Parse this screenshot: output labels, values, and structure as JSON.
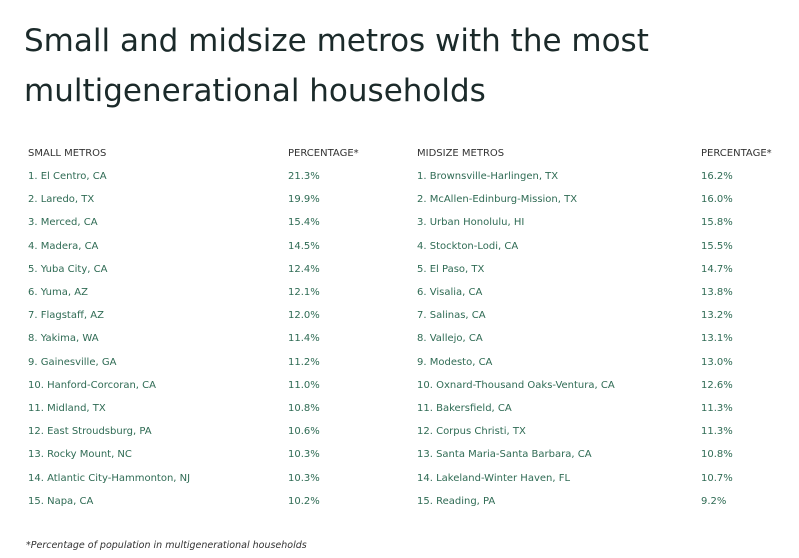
{
  "header": {
    "title": "Small and midsize metros with the most multigenerational households"
  },
  "tables": [
    {
      "columns": [
        "SMALL METROS",
        "PERCENTAGE*"
      ],
      "rows": [
        [
          "1. El Centro, CA",
          "21.3%"
        ],
        [
          "2. Laredo, TX",
          "19.9%"
        ],
        [
          "3. Merced, CA",
          "15.4%"
        ],
        [
          "4. Madera, CA",
          "14.5%"
        ],
        [
          "5. Yuba City, CA",
          "12.4%"
        ],
        [
          "6. Yuma, AZ",
          "12.1%"
        ],
        [
          "7. Flagstaff, AZ",
          "12.0%"
        ],
        [
          "8. Yakima, WA",
          "11.4%"
        ],
        [
          "9. Gainesville, GA",
          "11.2%"
        ],
        [
          "10. Hanford-Corcoran, CA",
          "11.0%"
        ],
        [
          "11. Midland, TX",
          "10.8%"
        ],
        [
          "12. East Stroudsburg, PA",
          "10.6%"
        ],
        [
          "13. Rocky Mount, NC",
          "10.3%"
        ],
        [
          "14. Atlantic City-Hammonton, NJ",
          "10.3%"
        ],
        [
          "15. Napa, CA",
          "10.2%"
        ]
      ]
    },
    {
      "columns": [
        "MIDSIZE METROS",
        "PERCENTAGE*"
      ],
      "rows": [
        [
          "1. Brownsville-Harlingen, TX",
          "16.2%"
        ],
        [
          "2. McAllen-Edinburg-Mission, TX",
          "16.0%"
        ],
        [
          "3. Urban Honolulu, HI",
          "15.8%"
        ],
        [
          "4. Stockton-Lodi, CA",
          "15.5%"
        ],
        [
          "5. El Paso, TX",
          "14.7%"
        ],
        [
          "6. Visalia, CA",
          "13.8%"
        ],
        [
          "7. Salinas, CA",
          "13.2%"
        ],
        [
          "8. Vallejo, CA",
          "13.1%"
        ],
        [
          "9. Modesto, CA",
          "13.0%"
        ],
        [
          "10. Oxnard-Thousand Oaks-Ventura, CA",
          "12.6%"
        ],
        [
          "11. Bakersfield, CA",
          "11.3%"
        ],
        [
          "12. Corpus Christi, TX",
          "11.3%"
        ],
        [
          "13. Santa Maria-Santa Barbara, CA",
          "10.8%"
        ],
        [
          "14. Lakeland-Winter Haven, FL",
          "10.7%"
        ],
        [
          "15. Reading, PA",
          "9.2%"
        ]
      ]
    }
  ],
  "footnote": "*Percentage of population in multigenerational households"
}
